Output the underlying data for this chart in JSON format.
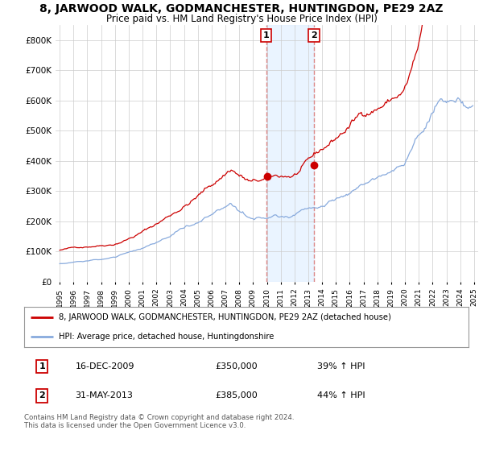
{
  "title": "8, JARWOOD WALK, GODMANCHESTER, HUNTINGDON, PE29 2AZ",
  "subtitle": "Price paid vs. HM Land Registry's House Price Index (HPI)",
  "title_fontsize": 10,
  "subtitle_fontsize": 8.5,
  "ylim": [
    0,
    850000
  ],
  "yticks": [
    0,
    100000,
    200000,
    300000,
    400000,
    500000,
    600000,
    700000,
    800000
  ],
  "ytick_labels": [
    "£0",
    "£100K",
    "£200K",
    "£300K",
    "£400K",
    "£500K",
    "£600K",
    "£700K",
    "£800K"
  ],
  "xlim_start": 1994.7,
  "xlim_end": 2025.3,
  "line1_color": "#cc0000",
  "line2_color": "#88aadd",
  "marker1_year": 2009.96,
  "marker2_year": 2013.41,
  "vline_color": "#dd8888",
  "vline_shade_color": "#ddeeff",
  "legend_line1": "8, JARWOOD WALK, GODMANCHESTER, HUNTINGDON, PE29 2AZ (detached house)",
  "legend_line2": "HPI: Average price, detached house, Huntingdonshire",
  "annot1_date": "16-DEC-2009",
  "annot1_price": "£350,000",
  "annot1_hpi": "39% ↑ HPI",
  "annot2_date": "31-MAY-2013",
  "annot2_price": "£385,000",
  "annot2_hpi": "44% ↑ HPI",
  "footer": "Contains HM Land Registry data © Crown copyright and database right 2024.\nThis data is licensed under the Open Government Licence v3.0.",
  "bg_color": "#ffffff",
  "grid_color": "#cccccc"
}
